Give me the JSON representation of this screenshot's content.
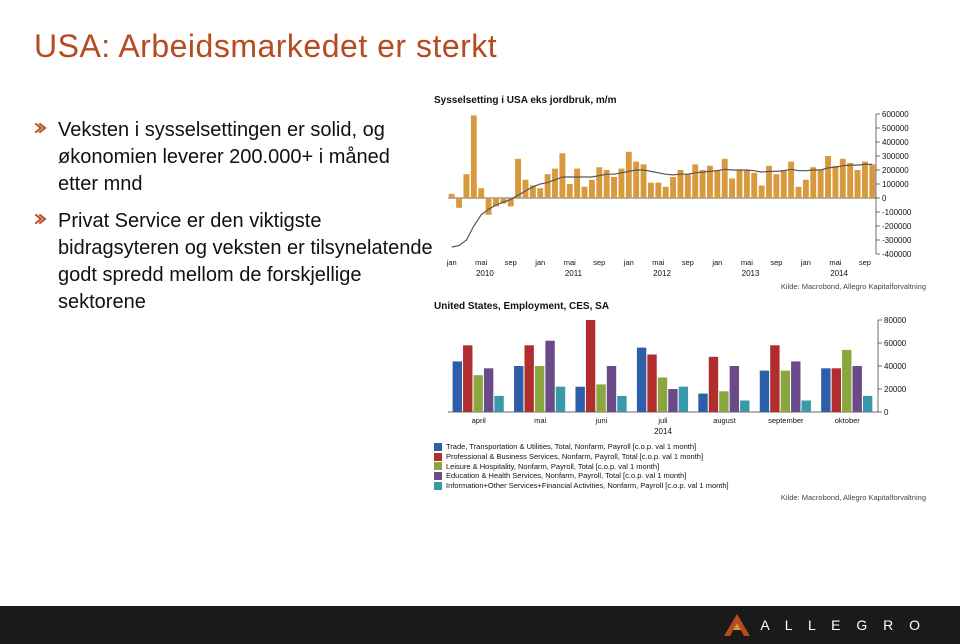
{
  "colors": {
    "accent": "#b74a1f",
    "text": "#111111",
    "footer_bg": "#1a1a1a",
    "footer_text": "#ffffff",
    "axis": "#333333",
    "grid": "#cccccc"
  },
  "title": "USA: Arbeidsmarkedet er sterkt",
  "bullets": [
    "Veksten i sysselsettingen er solid, og økonomien leverer 200.000+ i måned etter mnd",
    "Privat Service er den viktigste bidragsyteren og veksten er tilsynelatende godt spredd mellom de forskjellige sektorene"
  ],
  "chart1": {
    "type": "bar+line",
    "title": "Sysselsetting i USA eks jordbruk, m/m",
    "bar_color": "#d89a3e",
    "line_color": "#555555",
    "background_color": "#ffffff",
    "grid_color": "#d9d9d9",
    "ylim": [
      -400000,
      600000
    ],
    "ytick_step": 100000,
    "yticks": [
      -400000,
      -300000,
      -200000,
      -100000,
      0,
      100000,
      200000,
      300000,
      400000,
      500000,
      600000
    ],
    "x_years": [
      "2010",
      "2011",
      "2012",
      "2013",
      "2014"
    ],
    "x_months": [
      "jan",
      "mai",
      "sep"
    ],
    "bars": [
      30000,
      -70000,
      170000,
      590000,
      70000,
      -120000,
      -60000,
      -40000,
      -60000,
      280000,
      130000,
      90000,
      70000,
      170000,
      210000,
      320000,
      100000,
      210000,
      80000,
      130000,
      220000,
      200000,
      150000,
      210000,
      330000,
      260000,
      240000,
      110000,
      110000,
      80000,
      150000,
      200000,
      170000,
      240000,
      200000,
      230000,
      200000,
      280000,
      140000,
      200000,
      200000,
      180000,
      90000,
      230000,
      170000,
      200000,
      260000,
      80000,
      130000,
      220000,
      200000,
      300000,
      230000,
      280000,
      250000,
      200000,
      260000,
      240000
    ],
    "line": [
      -350000,
      -340000,
      -300000,
      -200000,
      -120000,
      -80000,
      -50000,
      -30000,
      -10000,
      20000,
      50000,
      80000,
      100000,
      110000,
      130000,
      150000,
      150000,
      150000,
      150000,
      150000,
      160000,
      170000,
      170000,
      180000,
      190000,
      200000,
      200000,
      190000,
      180000,
      170000,
      165000,
      170000,
      170000,
      180000,
      185000,
      190000,
      195000,
      205000,
      200000,
      200000,
      200000,
      195000,
      185000,
      190000,
      190000,
      195000,
      205000,
      195000,
      195000,
      200000,
      200000,
      215000,
      220000,
      230000,
      235000,
      235000,
      240000,
      240000
    ],
    "source": "Kilde: Macrobond, Allegro Kapitalforvaltning"
  },
  "chart2": {
    "type": "stacked-bar",
    "title": "United States, Employment, CES, SA",
    "background_color": "#ffffff",
    "grid_color": "#d9d9d9",
    "ylim": [
      0,
      80000
    ],
    "ytick_step": 20000,
    "yticks": [
      0,
      20000,
      40000,
      60000,
      80000
    ],
    "x_labels": [
      "april",
      "mai",
      "juni",
      "juli",
      "august",
      "september",
      "oktober"
    ],
    "x_year": "2014",
    "series": [
      {
        "name": "Trade, Transportation & Utilities, Total, Nonfarm, Payroll [c.o.p. val 1 month]",
        "color": "#2d5fa8"
      },
      {
        "name": "Professional & Business Services, Nonfarm, Payroll, Total [c.o.p. val 1 month]",
        "color": "#b02e2e"
      },
      {
        "name": "Leisure & Hospitality, Nonfarm, Payroll, Total [c.o.p. val 1 month]",
        "color": "#8aa63f"
      },
      {
        "name": "Education & Health Services, Nonfarm, Payroll, Total [c.o.p. val 1 month]",
        "color": "#6b4a8a"
      },
      {
        "name": "Information+Other Services+Financial Activities, Nonfarm, Payroll [c.o.p. val 1 month]",
        "color": "#3a99a8"
      }
    ],
    "data": {
      "april": [
        44000,
        58000,
        32000,
        38000,
        14000
      ],
      "mai": [
        40000,
        58000,
        40000,
        62000,
        22000
      ],
      "juni": [
        22000,
        80000,
        24000,
        40000,
        14000
      ],
      "juli": [
        56000,
        50000,
        30000,
        20000,
        22000
      ],
      "august": [
        16000,
        48000,
        18000,
        40000,
        10000
      ],
      "september": [
        36000,
        58000,
        36000,
        44000,
        10000
      ],
      "oktober": [
        38000,
        38000,
        54000,
        40000,
        14000
      ]
    },
    "source": "Kilde: Macrobond, Allegro Kapitalforvaltning"
  },
  "logo_text": "A L L E G R O"
}
